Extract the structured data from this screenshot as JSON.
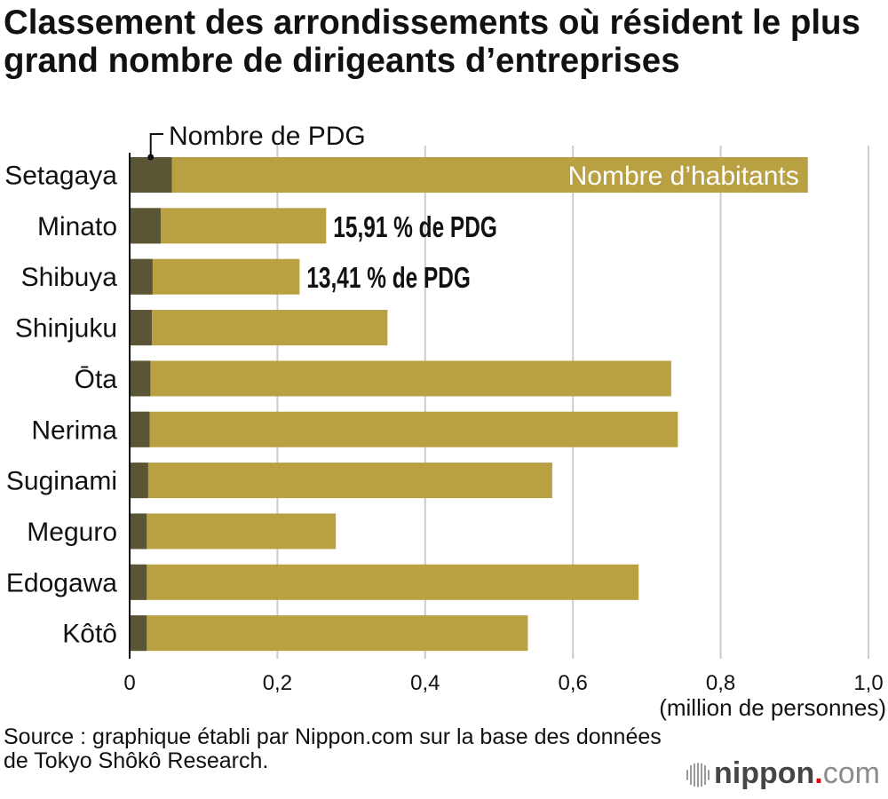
{
  "chart_data": {
    "type": "bar",
    "title": "Classement des arrondissements où résident le plus grand nombre de dirigeants d’entreprises",
    "categories": [
      "Setagaya",
      "Minato",
      "Shibuya",
      "Shinjuku",
      "Ōta",
      "Nerima",
      "Suginami",
      "Meguro",
      "Edogawa",
      "Kôtô"
    ],
    "series": [
      {
        "name": "Nombre d’habitants",
        "color": "#b9a042",
        "values": [
          0.918,
          0.266,
          0.23,
          0.349,
          0.733,
          0.742,
          0.572,
          0.279,
          0.689,
          0.539
        ]
      },
      {
        "name": "Nombre de PDG",
        "color": "#5a5534",
        "values": [
          0.057,
          0.042,
          0.031,
          0.03,
          0.028,
          0.027,
          0.025,
          0.023,
          0.023,
          0.023
        ]
      }
    ],
    "bar_labels": [
      null,
      "15,91 % de PDG",
      "13,41 % de PDG",
      null,
      null,
      null,
      null,
      null,
      null,
      null
    ],
    "xlim": [
      0,
      1.0
    ],
    "xticks": [
      0,
      0.2,
      0.4,
      0.6,
      0.8,
      1.0
    ],
    "xtick_labels": [
      "0",
      "0,2",
      "0,4",
      "0,6",
      "0,8",
      "1,0"
    ],
    "xlabel": "(million de personnes)",
    "grid": true
  },
  "source": "Source : graphique établi par Nippon.com sur la base des données de Tokyo Shôkô Research.",
  "logo": {
    "icon": "nippon-logo-icon",
    "name": "nippon",
    "dot": ".",
    "suffix": "com"
  },
  "colors": {
    "text": "#111111",
    "grid": "#cccccc",
    "axis": "#111111",
    "inbar_label": "#ffffff",
    "logo_name": "#454545",
    "logo_dot": "#e60012",
    "logo_suffix": "#8c8c8c",
    "logo_icon": "#8c8c8c"
  }
}
